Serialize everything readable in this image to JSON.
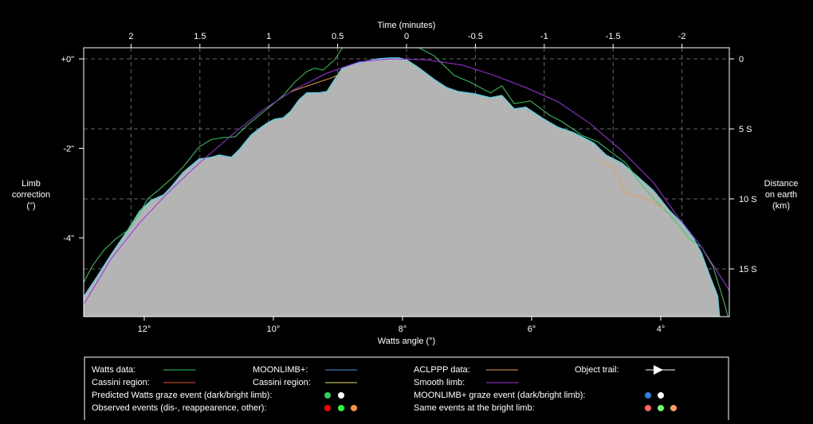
{
  "chart_data": {
    "type": "line",
    "title": "",
    "top_axis": {
      "label": "Time (minutes)",
      "ticks": [
        2,
        1.5,
        1,
        0.5,
        0,
        -0.5,
        -1,
        -1.5,
        -2
      ],
      "tick_labels": [
        "2",
        "1.5",
        "1",
        "0.5",
        "0",
        "-0.5",
        "-1",
        "-1.5",
        "-2"
      ]
    },
    "bottom_axis": {
      "label": "Watts angle (°)",
      "ticks": [
        12,
        10,
        8,
        6,
        4
      ],
      "tick_labels": [
        "12°",
        "10°",
        "8°",
        "6°",
        "4°"
      ],
      "range": [
        12.94,
        2.94
      ]
    },
    "left_axis": {
      "label_lines": [
        "Limb",
        "correction",
        "(\")"
      ],
      "ticks": [
        0,
        -2,
        -4
      ],
      "tick_labels": [
        "+0\"",
        "-2\"",
        "-4\""
      ],
      "range": [
        -5.76,
        0.25
      ]
    },
    "right_axis": {
      "label_lines": [
        "Distance",
        "on earth",
        "(km)"
      ],
      "ticks_km": [
        0,
        5,
        10,
        15
      ],
      "tick_labels": [
        "0",
        "5 S",
        "10 S",
        "15 S"
      ]
    },
    "grid": true,
    "colors": {
      "profile_fill": "#b4b4b4",
      "moonlimb": "#5fd0e0",
      "cassini_moonlimb": "#e8e070",
      "watts": "#2fd05a",
      "aclppp": "#e0a050",
      "smooth": "#a030e0",
      "cassini_watts": "#e05030"
    },
    "series": [
      {
        "name": "MOONLIMB+ profile",
        "x": [
          12.94,
          12.75,
          12.51,
          12.26,
          12.07,
          11.89,
          11.7,
          11.58,
          11.4,
          11.15,
          10.96,
          10.84,
          10.65,
          10.53,
          10.35,
          10.22,
          10.1,
          9.98,
          9.85,
          9.73,
          9.6,
          9.48,
          9.3,
          9.17,
          9.05,
          8.93,
          8.74,
          8.56,
          8.37,
          8.19,
          8.06,
          7.94,
          7.75,
          7.51,
          7.32,
          7.14,
          6.89,
          6.64,
          6.46,
          6.27,
          6.09,
          5.84,
          5.59,
          5.35,
          5.04,
          4.85,
          4.6,
          4.36,
          4.11,
          3.86,
          3.68,
          3.49,
          3.37,
          3.25,
          3.12,
          3.09
        ],
        "y": [
          -5.32,
          -4.91,
          -4.37,
          -3.84,
          -3.4,
          -3.16,
          -3.04,
          -2.86,
          -2.54,
          -2.24,
          -2.2,
          -2.15,
          -2.2,
          -2.03,
          -1.71,
          -1.56,
          -1.44,
          -1.35,
          -1.32,
          -1.17,
          -0.91,
          -0.76,
          -0.76,
          -0.73,
          -0.46,
          -0.2,
          -0.11,
          -0.05,
          0,
          0.02,
          0.02,
          -0.02,
          -0.2,
          -0.46,
          -0.64,
          -0.73,
          -0.78,
          -0.87,
          -0.82,
          -1.12,
          -1.08,
          -1.32,
          -1.53,
          -1.65,
          -1.88,
          -2.15,
          -2.33,
          -2.63,
          -2.95,
          -3.4,
          -3.66,
          -4.02,
          -4.34,
          -4.82,
          -5.3,
          -5.76
        ]
      },
      {
        "name": "Watts data",
        "segments": [
          {
            "x": [
              12.94,
              12.81,
              12.63,
              12.44,
              12.26,
              12.07,
              11.95,
              11.77,
              11.58,
              11.4,
              11.15,
              10.96,
              10.78,
              10.59,
              10.41,
              10.22,
              10.04,
              9.85,
              9.67,
              9.48,
              9.36,
              9.23,
              9.05,
              8.93
            ],
            "y": [
              -5.0,
              -4.64,
              -4.28,
              -4.02,
              -3.84,
              -3.45,
              -3.13,
              -2.92,
              -2.68,
              -2.42,
              -1.97,
              -1.8,
              -1.76,
              -1.74,
              -1.49,
              -1.26,
              -1.05,
              -0.82,
              -0.52,
              -0.28,
              -0.21,
              -0.25,
              -0.02,
              0.25
            ]
          },
          {
            "x": [
              7.75,
              7.51,
              7.2,
              6.95,
              6.64,
              6.46,
              6.27,
              6.02,
              5.72,
              5.53,
              5.22,
              4.98,
              4.79,
              4.54,
              4.3,
              4.05,
              3.86,
              3.68,
              3.56,
              3.37,
              3.19,
              3.0,
              2.96
            ],
            "y": [
              0.25,
              0.07,
              -0.37,
              -0.52,
              -0.76,
              -0.6,
              -1.0,
              -0.94,
              -1.26,
              -1.4,
              -1.71,
              -1.85,
              -2.06,
              -2.33,
              -2.81,
              -3.22,
              -3.48,
              -3.79,
              -4.02,
              -4.2,
              -4.64,
              -5.53,
              -5.76
            ]
          }
        ]
      },
      {
        "name": "Smooth limb",
        "x": [
          12.94,
          12.51,
          12.07,
          11.64,
          11.15,
          10.65,
          10.16,
          9.67,
          9.17,
          8.68,
          8.19,
          7.63,
          7.07,
          6.58,
          6.09,
          5.59,
          5.1,
          4.6,
          4.11,
          3.74,
          3.37,
          2.94
        ],
        "y": [
          -5.49,
          -4.46,
          -3.66,
          -3.0,
          -2.33,
          -1.71,
          -1.14,
          -0.68,
          -0.32,
          -0.07,
          0,
          -0.02,
          -0.14,
          -0.37,
          -0.64,
          -0.96,
          -1.44,
          -2.06,
          -2.77,
          -3.52,
          -4.2,
          -5.17
        ]
      },
      {
        "name": "ACLPPP data",
        "segments": [
          {
            "x": [
              9.73,
              9.36,
              9.11,
              8.93
            ],
            "y": [
              -0.73,
              -0.55,
              -0.43,
              -0.32
            ]
          },
          {
            "x": [
              4.93,
              4.73,
              4.54,
              4.23,
              3.95
            ],
            "y": [
              -2.28,
              -2.45,
              -3.0,
              -3.13,
              -3.34
            ]
          }
        ]
      }
    ]
  },
  "legend": {
    "watts_data": "Watts data:",
    "cassini_region_1": "Cassini region:",
    "moonlimb": "MOONLIMB+:",
    "cassini_region_2": "Cassini region:",
    "aclppp": "ACLPPP data:",
    "smooth_limb": "Smooth limb:",
    "object_trail": "Object trail:",
    "predicted_watts": "Predicted Watts graze event (dark/bright limb):",
    "moonlimb_graze": "MOONLIMB+ graze event (dark/bright limb):",
    "observed": "Observed events (dis-, reappearence, other):",
    "same_bright": "Same events at the bright limb:",
    "dot_colors": {
      "watts_dark": "#2fd05a",
      "watts_bright": "#ffffff",
      "ml_dark": "#2f7fe0",
      "ml_bright": "#ffffff",
      "obs": [
        "#ff0000",
        "#20ff40",
        "#ff9040"
      ],
      "bright": [
        "#ff6060",
        "#70ff70",
        "#ffa060"
      ]
    }
  }
}
